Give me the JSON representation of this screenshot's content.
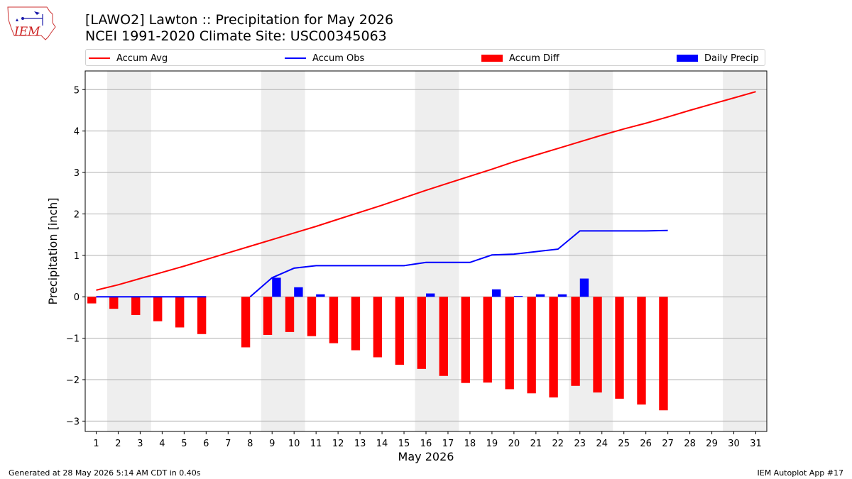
{
  "header": {
    "logo_text": "IEM",
    "title_line1": "[LAWO2] Lawton :: Precipitation for May 2026",
    "title_line2": "NCEI 1991-2020 Climate Site: USC00345063"
  },
  "legend": [
    {
      "label": "Accum Avg",
      "color": "#ff0000",
      "kind": "line"
    },
    {
      "label": "Accum Obs",
      "color": "#0000ff",
      "kind": "line"
    },
    {
      "label": "Accum Diff",
      "color": "#ff0000",
      "kind": "bar"
    },
    {
      "label": "Daily Precip",
      "color": "#0000ff",
      "kind": "bar"
    }
  ],
  "footer": {
    "left": "Generated at 28 May 2026 5:14 AM CDT in 0.40s",
    "right": "IEM Autoplot App #17"
  },
  "chart_data": {
    "type": "bar",
    "xlabel": "May 2026",
    "ylabel": "Precipitation [inch]",
    "xlim": [
      0.5,
      31.5
    ],
    "ylim": [
      -3.25,
      5.45
    ],
    "yticks": [
      -3,
      -2,
      -1,
      0,
      1,
      2,
      3,
      4,
      5
    ],
    "ytick_labels": [
      "−3",
      "−2",
      "−1",
      "0",
      "1",
      "2",
      "3",
      "4",
      "5"
    ],
    "days": [
      1,
      2,
      3,
      4,
      5,
      6,
      7,
      8,
      9,
      10,
      11,
      12,
      13,
      14,
      15,
      16,
      17,
      18,
      19,
      20,
      21,
      22,
      23,
      24,
      25,
      26,
      27,
      28,
      29,
      30,
      31
    ],
    "grid": "y",
    "weekend_shading": [
      [
        1.5,
        3.5
      ],
      [
        8.5,
        10.5
      ],
      [
        15.5,
        17.5
      ],
      [
        22.5,
        24.5
      ],
      [
        29.5,
        31.5
      ]
    ],
    "series": [
      {
        "name": "Accum Avg",
        "type": "line",
        "color": "#ff0000",
        "x": [
          1,
          2,
          3,
          4,
          5,
          6,
          7,
          8,
          9,
          10,
          11,
          12,
          13,
          14,
          15,
          16,
          17,
          18,
          19,
          20,
          21,
          22,
          23,
          24,
          25,
          26,
          27,
          28,
          29,
          30,
          31
        ],
        "values": [
          0.16,
          0.29,
          0.44,
          0.59,
          0.74,
          0.9,
          1.06,
          1.22,
          1.38,
          1.54,
          1.7,
          1.87,
          2.04,
          2.21,
          2.39,
          2.57,
          2.74,
          2.91,
          3.08,
          3.26,
          3.42,
          3.58,
          3.74,
          3.9,
          4.05,
          4.19,
          4.34,
          4.5,
          4.65,
          4.8,
          4.95
        ]
      },
      {
        "name": "Accum Obs",
        "type": "line",
        "color": "#0000ff",
        "segments": [
          {
            "x": [
              1,
              2,
              3,
              4,
              5,
              6
            ],
            "values": [
              0,
              0,
              0,
              0,
              0,
              0
            ]
          },
          {
            "x": [
              8,
              9,
              10,
              11,
              12,
              13,
              14,
              15,
              16,
              17,
              18,
              19,
              20,
              21,
              22,
              23,
              24,
              25,
              26,
              27
            ],
            "values": [
              0,
              0.46,
              0.69,
              0.75,
              0.75,
              0.75,
              0.75,
              0.75,
              0.83,
              0.83,
              0.83,
              1.01,
              1.03,
              1.09,
              1.15,
              1.59,
              1.59,
              1.59,
              1.59,
              1.6
            ]
          }
        ]
      },
      {
        "name": "Accum Diff",
        "type": "bar",
        "color": "#ff0000",
        "x": [
          1,
          2,
          3,
          4,
          5,
          6,
          8,
          9,
          10,
          11,
          12,
          13,
          14,
          15,
          16,
          17,
          18,
          19,
          20,
          21,
          22,
          23,
          24,
          25,
          26,
          27
        ],
        "values": [
          -0.16,
          -0.29,
          -0.44,
          -0.59,
          -0.74,
          -0.9,
          -1.22,
          -0.92,
          -0.85,
          -0.95,
          -1.12,
          -1.29,
          -1.46,
          -1.64,
          -1.74,
          -1.91,
          -2.08,
          -2.07,
          -2.23,
          -2.33,
          -2.43,
          -2.15,
          -2.31,
          -2.46,
          -2.6,
          -2.74
        ]
      },
      {
        "name": "Daily Precip",
        "type": "bar",
        "color": "#0000ff",
        "x": [
          9,
          10,
          11,
          16,
          19,
          20,
          21,
          22,
          23
        ],
        "values": [
          0.46,
          0.23,
          0.06,
          0.08,
          0.18,
          0.02,
          0.06,
          0.06,
          0.44
        ]
      }
    ]
  }
}
